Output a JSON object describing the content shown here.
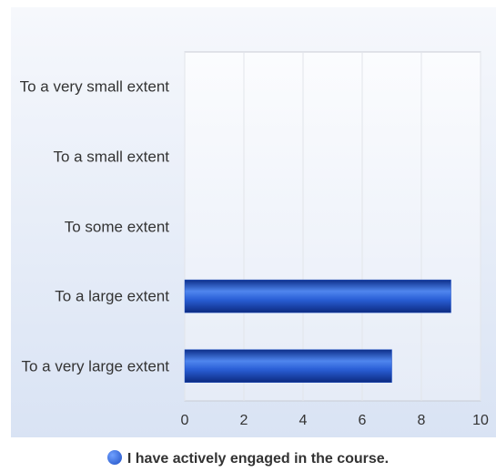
{
  "chart_data": {
    "type": "bar",
    "orientation": "horizontal",
    "categories": [
      "To a very small extent",
      "To a small extent",
      "To some extent",
      "To a large extent",
      "To a very large extent"
    ],
    "series": [
      {
        "name": "I have actively engaged in the course.",
        "color": "#1f4fc4",
        "values": [
          0,
          0,
          0,
          9,
          7
        ]
      }
    ],
    "xlim": [
      0,
      10
    ],
    "xticks": [
      0,
      2,
      4,
      6,
      8,
      10
    ],
    "grid": true,
    "legend": "bottom"
  }
}
